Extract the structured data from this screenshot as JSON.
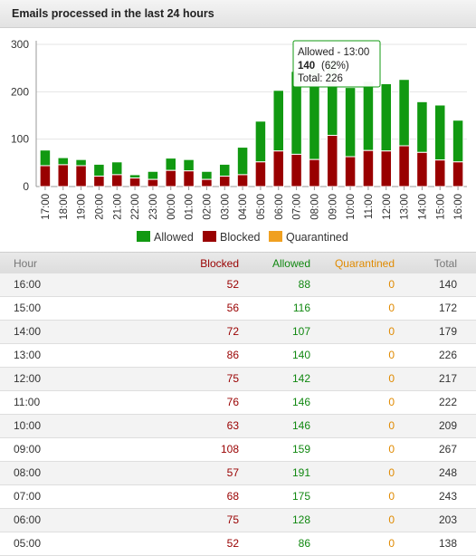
{
  "panel": {
    "title": "Emails processed in the last 24 hours"
  },
  "chart_data": {
    "type": "bar",
    "stacked": true,
    "categories": [
      "17:00",
      "18:00",
      "19:00",
      "20:00",
      "21:00",
      "22:00",
      "23:00",
      "00:00",
      "01:00",
      "02:00",
      "03:00",
      "04:00",
      "05:00",
      "06:00",
      "07:00",
      "08:00",
      "09:00",
      "10:00",
      "11:00",
      "12:00",
      "13:00",
      "14:00",
      "15:00",
      "16:00"
    ],
    "series": [
      {
        "name": "Blocked",
        "color": "#990000",
        "values": [
          44,
          46,
          44,
          22,
          25,
          18,
          15,
          34,
          33,
          15,
          22,
          25,
          52,
          75,
          68,
          57,
          108,
          63,
          76,
          75,
          86,
          72,
          56,
          52
        ]
      },
      {
        "name": "Allowed",
        "color": "#119911",
        "values": [
          33,
          15,
          13,
          25,
          27,
          7,
          17,
          26,
          24,
          17,
          25,
          58,
          86,
          128,
          175,
          191,
          159,
          146,
          146,
          142,
          140,
          107,
          116,
          88
        ]
      },
      {
        "name": "Quarantined",
        "color": "#f0a020",
        "values": [
          0,
          0,
          0,
          0,
          0,
          0,
          0,
          0,
          0,
          0,
          0,
          0,
          0,
          0,
          0,
          0,
          0,
          0,
          0,
          0,
          0,
          0,
          0,
          0
        ]
      }
    ],
    "yticks": [
      0,
      100,
      200,
      300
    ],
    "ylim": [
      0,
      300
    ],
    "grid": true,
    "legend_position": "bottom",
    "tooltip": {
      "line1": "Allowed - 13:00",
      "value": "140",
      "pct": "(62%)",
      "total": "Total: 226"
    }
  },
  "table": {
    "headers": {
      "hour": "Hour",
      "blocked": "Blocked",
      "allowed": "Allowed",
      "quarantined": "Quarantined",
      "total": "Total"
    },
    "rows": [
      {
        "hour": "16:00",
        "blocked": "52",
        "allowed": "88",
        "quarantined": "0",
        "total": "140"
      },
      {
        "hour": "15:00",
        "blocked": "56",
        "allowed": "116",
        "quarantined": "0",
        "total": "172"
      },
      {
        "hour": "14:00",
        "blocked": "72",
        "allowed": "107",
        "quarantined": "0",
        "total": "179"
      },
      {
        "hour": "13:00",
        "blocked": "86",
        "allowed": "140",
        "quarantined": "0",
        "total": "226"
      },
      {
        "hour": "12:00",
        "blocked": "75",
        "allowed": "142",
        "quarantined": "0",
        "total": "217"
      },
      {
        "hour": "11:00",
        "blocked": "76",
        "allowed": "146",
        "quarantined": "0",
        "total": "222"
      },
      {
        "hour": "10:00",
        "blocked": "63",
        "allowed": "146",
        "quarantined": "0",
        "total": "209"
      },
      {
        "hour": "09:00",
        "blocked": "108",
        "allowed": "159",
        "quarantined": "0",
        "total": "267"
      },
      {
        "hour": "08:00",
        "blocked": "57",
        "allowed": "191",
        "quarantined": "0",
        "total": "248"
      },
      {
        "hour": "07:00",
        "blocked": "68",
        "allowed": "175",
        "quarantined": "0",
        "total": "243"
      },
      {
        "hour": "06:00",
        "blocked": "75",
        "allowed": "128",
        "quarantined": "0",
        "total": "203"
      },
      {
        "hour": "05:00",
        "blocked": "52",
        "allowed": "86",
        "quarantined": "0",
        "total": "138"
      }
    ]
  }
}
